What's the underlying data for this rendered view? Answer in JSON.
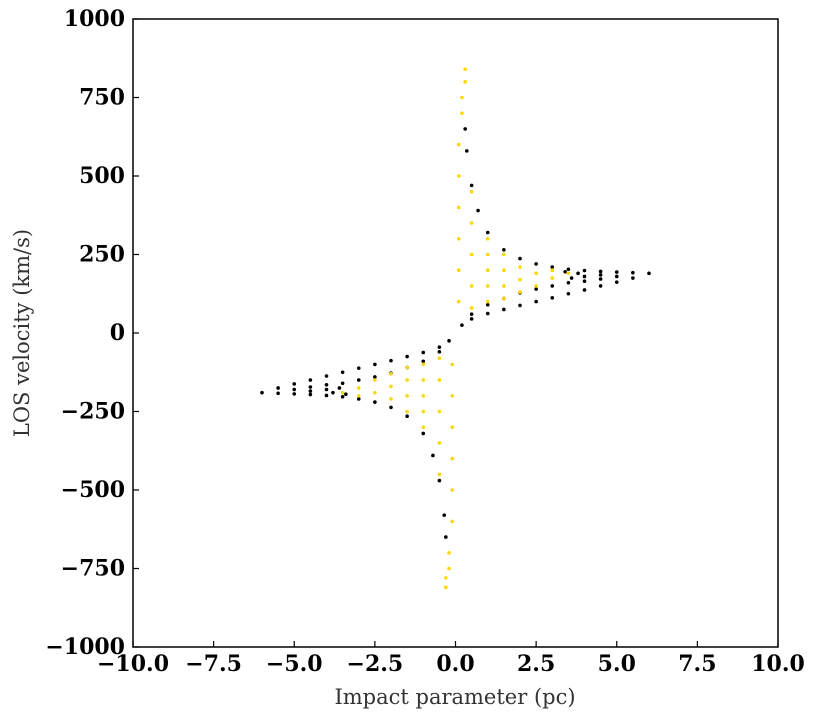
{
  "chart_data": {
    "type": "scatter",
    "title": "",
    "xlabel": "Impact parameter (pc)",
    "ylabel": "LOS velocity (km/s)",
    "xlim": [
      -10,
      10
    ],
    "ylim": [
      -1000,
      1000
    ],
    "xticks": [
      -10,
      -7.5,
      -5,
      -2.5,
      0,
      2.5,
      5,
      7.5,
      10
    ],
    "xtick_labels": [
      "−10.0",
      "−7.5",
      "−5.0",
      "−2.5",
      "0.0",
      "2.5",
      "5.0",
      "7.5",
      "10.0"
    ],
    "yticks": [
      1000,
      750,
      500,
      250,
      0,
      -250,
      -500,
      -750,
      -1000
    ],
    "ytick_labels": [
      "1000",
      "750",
      "500",
      "250",
      "0",
      "−250",
      "−500",
      "−750",
      "−1000"
    ],
    "grid": false,
    "legend": "none",
    "series": [
      {
        "color": "#000000",
        "values": [
          [
            6.0,
            190
          ],
          [
            5.5,
            192
          ],
          [
            5.0,
            194
          ],
          [
            4.5,
            196
          ],
          [
            4.0,
            199
          ],
          [
            3.5,
            203
          ],
          [
            3.0,
            210
          ],
          [
            2.5,
            220
          ],
          [
            2.0,
            237
          ],
          [
            1.5,
            265
          ],
          [
            1.0,
            320
          ],
          [
            0.7,
            390
          ],
          [
            0.5,
            470
          ],
          [
            0.35,
            580
          ],
          [
            0.3,
            650
          ],
          [
            5.5,
            175
          ],
          [
            5.0,
            162
          ],
          [
            4.5,
            150
          ],
          [
            4.0,
            137
          ],
          [
            3.5,
            125
          ],
          [
            3.0,
            112
          ],
          [
            2.5,
            100
          ],
          [
            2.0,
            88
          ],
          [
            1.5,
            75
          ],
          [
            1.0,
            62
          ],
          [
            0.5,
            45
          ],
          [
            0.2,
            25
          ],
          [
            5.0,
            180
          ],
          [
            4.5,
            172
          ],
          [
            4.0,
            165
          ],
          [
            3.8,
            190
          ],
          [
            3.5,
            160
          ],
          [
            3.0,
            150
          ],
          [
            2.5,
            140
          ],
          [
            2.0,
            128
          ],
          [
            1.5,
            110
          ],
          [
            1.0,
            90
          ],
          [
            0.5,
            60
          ],
          [
            4.5,
            185
          ],
          [
            4.0,
            180
          ],
          [
            3.6,
            175
          ],
          [
            3.4,
            195
          ],
          [
            -6.0,
            -190
          ],
          [
            -5.5,
            -192
          ],
          [
            -5.0,
            -194
          ],
          [
            -4.5,
            -196
          ],
          [
            -4.0,
            -199
          ],
          [
            -3.5,
            -203
          ],
          [
            -3.0,
            -210
          ],
          [
            -2.5,
            -220
          ],
          [
            -2.0,
            -237
          ],
          [
            -1.5,
            -265
          ],
          [
            -1.0,
            -320
          ],
          [
            -0.7,
            -390
          ],
          [
            -0.5,
            -470
          ],
          [
            -0.35,
            -580
          ],
          [
            -0.3,
            -650
          ],
          [
            -5.5,
            -175
          ],
          [
            -5.0,
            -162
          ],
          [
            -4.5,
            -150
          ],
          [
            -4.0,
            -137
          ],
          [
            -3.5,
            -125
          ],
          [
            -3.0,
            -112
          ],
          [
            -2.5,
            -100
          ],
          [
            -2.0,
            -88
          ],
          [
            -1.5,
            -75
          ],
          [
            -1.0,
            -62
          ],
          [
            -0.5,
            -45
          ],
          [
            -0.2,
            -25
          ],
          [
            -5.0,
            -180
          ],
          [
            -4.5,
            -172
          ],
          [
            -4.0,
            -165
          ],
          [
            -3.8,
            -190
          ],
          [
            -3.5,
            -160
          ],
          [
            -3.0,
            -150
          ],
          [
            -2.5,
            -140
          ],
          [
            -2.0,
            -128
          ],
          [
            -1.5,
            -110
          ],
          [
            -1.0,
            -90
          ],
          [
            -0.5,
            -60
          ],
          [
            -4.5,
            -185
          ],
          [
            -4.0,
            -180
          ],
          [
            -3.6,
            -175
          ],
          [
            -3.4,
            -195
          ]
        ]
      },
      {
        "color": "#FFD700",
        "values": [
          [
            0.1,
            100
          ],
          [
            0.1,
            200
          ],
          [
            0.1,
            300
          ],
          [
            0.1,
            400
          ],
          [
            0.1,
            500
          ],
          [
            0.1,
            600
          ],
          [
            0.2,
            700
          ],
          [
            0.3,
            800
          ],
          [
            0.3,
            840
          ],
          [
            0.2,
            750
          ],
          [
            0.5,
            80
          ],
          [
            0.5,
            150
          ],
          [
            0.5,
            250
          ],
          [
            0.5,
            350
          ],
          [
            0.5,
            450
          ],
          [
            1.0,
            100
          ],
          [
            1.0,
            150
          ],
          [
            1.0,
            200
          ],
          [
            1.0,
            250
          ],
          [
            1.0,
            300
          ],
          [
            1.5,
            110
          ],
          [
            1.5,
            150
          ],
          [
            1.5,
            200
          ],
          [
            1.5,
            250
          ],
          [
            2.0,
            130
          ],
          [
            2.0,
            170
          ],
          [
            2.0,
            210
          ],
          [
            2.5,
            150
          ],
          [
            2.5,
            190
          ],
          [
            3.0,
            175
          ],
          [
            3.0,
            200
          ],
          [
            3.5,
            190
          ],
          [
            -0.1,
            -100
          ],
          [
            -0.1,
            -200
          ],
          [
            -0.1,
            -300
          ],
          [
            -0.1,
            -400
          ],
          [
            -0.1,
            -500
          ],
          [
            -0.1,
            -600
          ],
          [
            -0.2,
            -700
          ],
          [
            -0.3,
            -780
          ],
          [
            -0.3,
            -810
          ],
          [
            -0.2,
            -750
          ],
          [
            -0.5,
            -80
          ],
          [
            -0.5,
            -150
          ],
          [
            -0.5,
            -250
          ],
          [
            -0.5,
            -350
          ],
          [
            -0.5,
            -450
          ],
          [
            -1.0,
            -100
          ],
          [
            -1.0,
            -150
          ],
          [
            -1.0,
            -200
          ],
          [
            -1.0,
            -250
          ],
          [
            -1.0,
            -300
          ],
          [
            -1.5,
            -110
          ],
          [
            -1.5,
            -150
          ],
          [
            -1.5,
            -200
          ],
          [
            -1.5,
            -250
          ],
          [
            -2.0,
            -130
          ],
          [
            -2.0,
            -170
          ],
          [
            -2.0,
            -210
          ],
          [
            -2.5,
            -150
          ],
          [
            -2.5,
            -190
          ],
          [
            -3.0,
            -175
          ],
          [
            -3.0,
            -200
          ],
          [
            -3.5,
            -190
          ]
        ]
      }
    ]
  }
}
